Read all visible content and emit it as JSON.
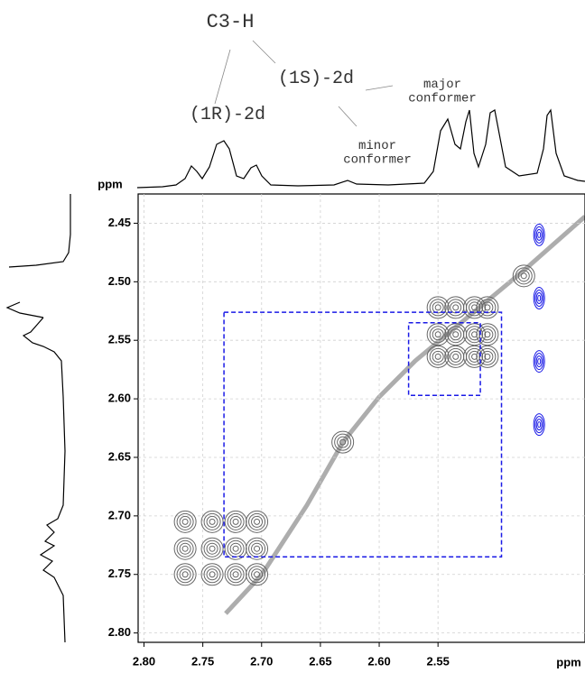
{
  "chart_data": {
    "type": "contour2d",
    "x_label": "ppm",
    "y_label": "ppm",
    "xlim": [
      2.805,
      2.425
    ],
    "ylim": [
      2.425,
      2.808
    ],
    "xticks": [
      {
        "value": 2.8,
        "label": "2.80"
      },
      2.75,
      {
        "value": 2.7,
        "label": "2.70"
      },
      2.65,
      {
        "value": 2.6,
        "label": "2.60"
      },
      2.55
    ],
    "yticks": [
      2.45,
      {
        "value": 2.5,
        "label": "2.50"
      },
      2.55,
      {
        "value": 2.6,
        "label": "2.60"
      },
      2.65,
      {
        "value": 2.7,
        "label": "2.70"
      },
      2.75,
      {
        "value": 2.8,
        "label": "2.80"
      }
    ],
    "grid": true,
    "series": [
      {
        "color": "#666666",
        "x": [
          2.765,
          2.742,
          2.722,
          2.704,
          2.765,
          2.742,
          2.722,
          2.704,
          2.765,
          2.742,
          2.722,
          2.704,
          2.55,
          2.535,
          2.519,
          2.508,
          2.55,
          2.535,
          2.519,
          2.508,
          2.55,
          2.535,
          2.519,
          2.508,
          2.631,
          2.477
        ],
        "y": [
          2.705,
          2.705,
          2.705,
          2.705,
          2.728,
          2.728,
          2.728,
          2.728,
          2.75,
          2.75,
          2.75,
          2.75,
          2.522,
          2.522,
          2.522,
          2.522,
          2.545,
          2.545,
          2.545,
          2.545,
          2.564,
          2.564,
          2.564,
          2.564,
          2.637,
          2.495
        ]
      },
      {
        "color": "#1a1ae6",
        "x": [
          2.464,
          2.464,
          2.464,
          2.464
        ],
        "y": [
          2.46,
          2.514,
          2.568,
          2.622
        ]
      }
    ],
    "boxes": [
      {
        "color": "#1a1ae6",
        "x": [
          2.732,
          2.496
        ],
        "y": [
          2.526,
          2.735
        ]
      },
      {
        "color": "#1a1ae6",
        "x": [
          2.575,
          2.514
        ],
        "y": [
          2.535,
          2.597
        ]
      }
    ],
    "annotations": [
      {
        "lines": [
          "C3-H"
        ]
      },
      {
        "lines": [
          "(1S)-2d"
        ]
      },
      {
        "lines": [
          "(1R)-2d"
        ]
      },
      {
        "lines": [
          "major",
          "conformer"
        ]
      },
      {
        "lines": [
          "minor",
          "conformer"
        ]
      }
    ]
  }
}
